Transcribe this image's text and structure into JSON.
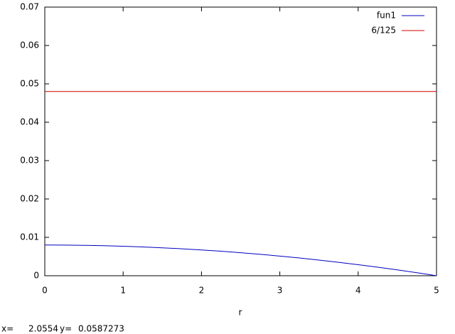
{
  "chart_data": {
    "type": "line",
    "xlabel": "r",
    "xlim": [
      0,
      5
    ],
    "xticks": [
      0,
      1,
      2,
      3,
      4,
      5
    ],
    "ylim": [
      0,
      0.07
    ],
    "yticks": [
      0,
      0.01,
      0.02,
      0.03,
      0.04,
      0.05,
      0.06,
      0.07
    ],
    "legend": "upper right",
    "series": [
      {
        "name": "fun1",
        "color": "#0000c0",
        "x": [
          0,
          0.25,
          0.5,
          0.75,
          1,
          1.25,
          1.5,
          1.75,
          2,
          2.25,
          2.5,
          2.75,
          3,
          3.25,
          3.5,
          3.75,
          4,
          4.25,
          4.5,
          4.75,
          5
        ],
        "values": [
          0.008,
          0.00798,
          0.00792,
          0.00782,
          0.00768,
          0.0075,
          0.00728,
          0.00702,
          0.00672,
          0.00638,
          0.006,
          0.00558,
          0.00512,
          0.00462,
          0.00408,
          0.0035,
          0.00288,
          0.00222,
          0.00152,
          0.00078,
          0
        ]
      },
      {
        "name": "6/125",
        "color": "#d00000",
        "x": [
          0,
          5
        ],
        "values": [
          0.048,
          0.048
        ]
      }
    ]
  },
  "status": {
    "x_label": "x=",
    "x_value": "2.0554",
    "y_label": "y=",
    "y_value": "0.0587273"
  }
}
